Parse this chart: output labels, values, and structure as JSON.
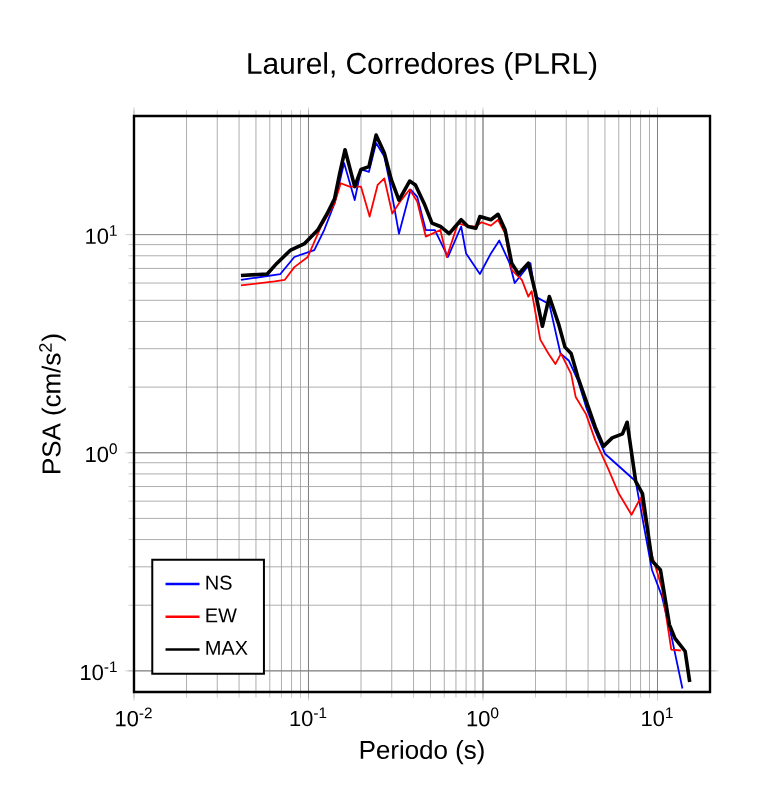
{
  "chart_data": {
    "type": "line",
    "title": "Laurel, Corredores (PLRL)",
    "xlabel": "Periodo (s)",
    "ylabel": "PSA (cm/s$^{2}$)",
    "log": "xy",
    "grid": true,
    "legend": "bottom left",
    "marker": "none",
    "line_style": "solid",
    "xlim": [
      0.01,
      20
    ],
    "ylim": [
      0.08,
      35
    ],
    "xticks": [
      {
        "value": 0.01,
        "label": "10$^{-2}$"
      },
      {
        "value": 0.1,
        "label": "10$^{-1}$"
      },
      {
        "value": 1,
        "label": "10$^{0}$"
      },
      {
        "value": 10,
        "label": "10$^{1}$"
      }
    ],
    "yticks": [
      {
        "value": 0.1,
        "label": "10$^{-1}$"
      },
      {
        "value": 1,
        "label": "10$^{0}$"
      },
      {
        "value": 10,
        "label": "10$^{1}$"
      }
    ],
    "series": [
      {
        "name": "NS",
        "color": "#0000ff",
        "x": [
          0.041,
          0.069,
          0.083,
          0.108,
          0.123,
          0.141,
          0.16,
          0.184,
          0.2,
          0.222,
          0.244,
          0.272,
          0.293,
          0.33,
          0.385,
          0.42,
          0.47,
          0.53,
          0.63,
          0.75,
          0.8,
          0.96,
          1.11,
          1.24,
          1.42,
          1.52,
          1.67,
          1.87,
          2.0,
          2.19,
          2.4,
          2.78,
          3.1,
          3.5,
          3.9,
          4.4,
          5.0,
          7.5,
          8.3,
          9.3,
          10.6,
          12.0,
          13.9
        ],
        "values": [
          6.2,
          6.6,
          7.9,
          8.5,
          10.5,
          13.9,
          21.3,
          14.4,
          19.9,
          19.4,
          26.3,
          22.8,
          17.2,
          10.1,
          16.1,
          14.9,
          10.5,
          10.5,
          7.9,
          10.9,
          8.2,
          6.6,
          8.2,
          9.4,
          7.4,
          6.0,
          6.6,
          7.4,
          5.2,
          null,
          4.8,
          2.85,
          2.65,
          2.15,
          1.62,
          1.26,
          0.99,
          0.74,
          null,
          0.29,
          0.22,
          0.145,
          0.083
        ]
      },
      {
        "name": "EW",
        "color": "#ff0000",
        "x": [
          0.041,
          0.064,
          0.073,
          0.083,
          0.099,
          0.118,
          0.141,
          0.153,
          0.172,
          0.2,
          0.224,
          0.249,
          0.272,
          0.302,
          0.34,
          0.38,
          0.42,
          0.47,
          0.57,
          0.62,
          0.72,
          0.82,
          0.91,
          0.98,
          1.11,
          1.22,
          1.34,
          1.46,
          1.67,
          1.82,
          1.9,
          2.13,
          2.37,
          2.6,
          2.8,
          3.2,
          3.4,
          3.9,
          4.4,
          5.2,
          6.0,
          7.1,
          8.0,
          9.3,
          10.6,
          12.0,
          13.6
        ],
        "values": [
          5.85,
          6.1,
          6.2,
          7.1,
          7.9,
          10.9,
          13.9,
          17.2,
          16.6,
          16.6,
          12.1,
          16.9,
          18.1,
          12.5,
          14.4,
          16.1,
          14.2,
          9.8,
          10.5,
          7.9,
          11.3,
          10.9,
          10.9,
          11.4,
          11.0,
          11.7,
          10.1,
          6.9,
          6.2,
          5.2,
          5.5,
          3.3,
          2.85,
          2.55,
          2.85,
          2.3,
          1.8,
          1.5,
          1.14,
          0.85,
          0.65,
          0.52,
          0.62,
          0.34,
          0.24,
          0.125,
          0.124
        ]
      },
      {
        "name": "MAX",
        "color": "#000000",
        "x": [
          0.041,
          0.058,
          0.066,
          0.079,
          0.095,
          0.113,
          0.128,
          0.141,
          0.151,
          0.162,
          0.184,
          0.2,
          0.222,
          0.244,
          0.272,
          0.298,
          0.33,
          0.38,
          0.41,
          0.46,
          0.51,
          0.57,
          0.64,
          0.75,
          0.82,
          0.91,
          0.96,
          1.11,
          1.22,
          1.34,
          1.46,
          1.6,
          1.82,
          2.0,
          2.19,
          2.4,
          2.71,
          2.95,
          3.2,
          3.5,
          3.9,
          4.4,
          4.9,
          5.5,
          6.3,
          6.7,
          7.5,
          8.2,
          9.3,
          10.4,
          11.7,
          12.6,
          14.4,
          15.3
        ],
        "values": [
          6.5,
          6.6,
          7.4,
          8.5,
          9.1,
          10.5,
          12.5,
          14.6,
          19.1,
          24.5,
          16.6,
          19.9,
          20.5,
          28.6,
          23.7,
          17.9,
          14.4,
          17.6,
          16.9,
          13.9,
          11.3,
          10.9,
          10.1,
          11.7,
          10.9,
          10.7,
          12.1,
          11.7,
          12.4,
          10.5,
          7.4,
          6.6,
          7.4,
          5.4,
          3.8,
          5.2,
          3.9,
          3.05,
          2.85,
          2.22,
          1.73,
          1.31,
          1.07,
          1.17,
          1.22,
          1.38,
          0.74,
          0.65,
          0.32,
          0.29,
          0.163,
          0.141,
          0.123,
          0.089
        ]
      }
    ]
  }
}
